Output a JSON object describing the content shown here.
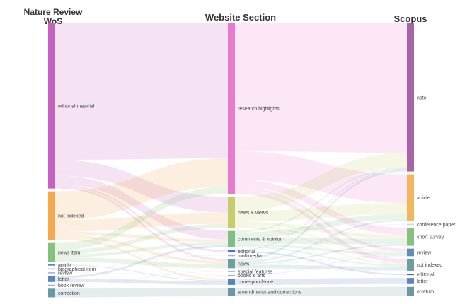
{
  "columns": [
    {
      "title_line1": "Nature Review",
      "title_line2": "WoS"
    },
    {
      "title": "Website Section"
    },
    {
      "title": "Scopus"
    }
  ],
  "chart_data": {
    "type": "sankey",
    "nodes": [
      [
        {
          "name": "editorial material",
          "value": 230,
          "color": "#c562c0"
        },
        {
          "name": "not indexed",
          "value": 68,
          "color": "#f5a94e"
        },
        {
          "name": "news item",
          "value": 26,
          "color": "#86c37a"
        },
        {
          "name": "article",
          "value": 1,
          "color": "#4f6fc4"
        },
        {
          "name": "biographical-item",
          "value": 0.5,
          "color": "#9ab0d8"
        },
        {
          "name": "review",
          "value": 0.5,
          "color": "#9ab0d8"
        },
        {
          "name": "letter",
          "value": 8,
          "color": "#5b86b8"
        },
        {
          "name": "book review",
          "value": 0.5,
          "color": "#9ab0d8"
        },
        {
          "name": "correction",
          "value": 12,
          "color": "#6a98a3"
        }
      ],
      [
        {
          "name": "research highlights",
          "value": 240,
          "color": "#e87bcf"
        },
        {
          "name": "news & views",
          "value": 44,
          "color": "#c6ce6b"
        },
        {
          "name": "comments & opinion",
          "value": 23,
          "color": "#7fbf86"
        },
        {
          "name": "editorial",
          "value": 3,
          "color": "#4a6fd1"
        },
        {
          "name": "multimedia",
          "value": 0.5,
          "color": "#9ab0d8"
        },
        {
          "name": "news",
          "value": 13,
          "color": "#6d9ea0"
        },
        {
          "name": "special features",
          "value": 1,
          "color": "#9ab0d8"
        },
        {
          "name": "books & arts",
          "value": 1,
          "color": "#9ab0d8"
        },
        {
          "name": "correspondence",
          "value": 8.5,
          "color": "#5883b5"
        },
        {
          "name": "amendments and corrections",
          "value": 12,
          "color": "#6a98a3"
        }
      ],
      [
        {
          "name": "note",
          "value": 206,
          "color": "#a865a6"
        },
        {
          "name": "article",
          "value": 65,
          "color": "#f5b660"
        },
        {
          "name": "conference paper",
          "value": 0.5,
          "color": "#c8d4e8"
        },
        {
          "name": "short survey",
          "value": 25,
          "color": "#86c37a"
        },
        {
          "name": "review",
          "value": 10.5,
          "color": "#5f8db3"
        },
        {
          "name": "not indexed",
          "value": 16.5,
          "color": "#6d9ea0"
        },
        {
          "name": "editorial",
          "value": 2,
          "color": "#4a5fc0"
        },
        {
          "name": "letter",
          "value": 8.5,
          "color": "#5b86b8"
        },
        {
          "name": "erratum",
          "value": 12,
          "color": "#6a98a3"
        }
      ]
    ],
    "links": [
      [
        [
          "editorial material",
          "research highlights",
          190
        ],
        [
          "editorial material",
          "news & views",
          22
        ],
        [
          "editorial material",
          "comments & opinion",
          12
        ],
        [
          "editorial material",
          "editorial",
          3
        ],
        [
          "editorial material",
          "news",
          3
        ],
        [
          "not indexed",
          "research highlights",
          40
        ],
        [
          "not indexed",
          "news & views",
          16
        ],
        [
          "not indexed",
          "comments & opinion",
          4
        ],
        [
          "not indexed",
          "news",
          4
        ],
        [
          "not indexed",
          "special features",
          0.5
        ],
        [
          "not indexed",
          "books & arts",
          0.5
        ],
        [
          "not indexed",
          "correspondence",
          2.5
        ],
        [
          "news item",
          "research highlights",
          10
        ],
        [
          "news item",
          "news & views",
          6
        ],
        [
          "news item",
          "comments & opinion",
          4
        ],
        [
          "news item",
          "news",
          6
        ],
        [
          "article",
          "correspondence",
          1
        ],
        [
          "biographical-item",
          "multimedia",
          0.5
        ],
        [
          "review",
          "books & arts",
          0.5
        ],
        [
          "letter",
          "comments & opinion",
          3
        ],
        [
          "letter",
          "correspondence",
          5
        ],
        [
          "book review",
          "special features",
          0.5
        ],
        [
          "correction",
          "amendments and corrections",
          12
        ]
      ],
      [
        [
          "research highlights",
          "note",
          180
        ],
        [
          "research highlights",
          "article",
          40
        ],
        [
          "research highlights",
          "short survey",
          10
        ],
        [
          "research highlights",
          "review",
          4
        ],
        [
          "research highlights",
          "not indexed",
          6
        ],
        [
          "news & views",
          "note",
          20
        ],
        [
          "news & views",
          "article",
          15
        ],
        [
          "news & views",
          "short survey",
          5
        ],
        [
          "news & views",
          "review",
          2
        ],
        [
          "news & views",
          "not indexed",
          2
        ],
        [
          "comments & opinion",
          "note",
          2
        ],
        [
          "comments & opinion",
          "article",
          8
        ],
        [
          "comments & opinion",
          "short survey",
          8
        ],
        [
          "comments & opinion",
          "review",
          3
        ],
        [
          "comments & opinion",
          "not indexed",
          2
        ],
        [
          "editorial",
          "note",
          1
        ],
        [
          "editorial",
          "editorial",
          2
        ],
        [
          "multimedia",
          "not indexed",
          0.5
        ],
        [
          "news",
          "note",
          3
        ],
        [
          "news",
          "article",
          2
        ],
        [
          "news",
          "conference paper",
          0.5
        ],
        [
          "news",
          "short survey",
          2
        ],
        [
          "news",
          "review",
          0.5
        ],
        [
          "news",
          "not indexed",
          5
        ],
        [
          "special features",
          "not indexed",
          1
        ],
        [
          "books & arts",
          "review",
          1
        ],
        [
          "correspondence",
          "letter",
          8.5
        ],
        [
          "amendments and corrections",
          "erratum",
          12
        ]
      ]
    ]
  }
}
